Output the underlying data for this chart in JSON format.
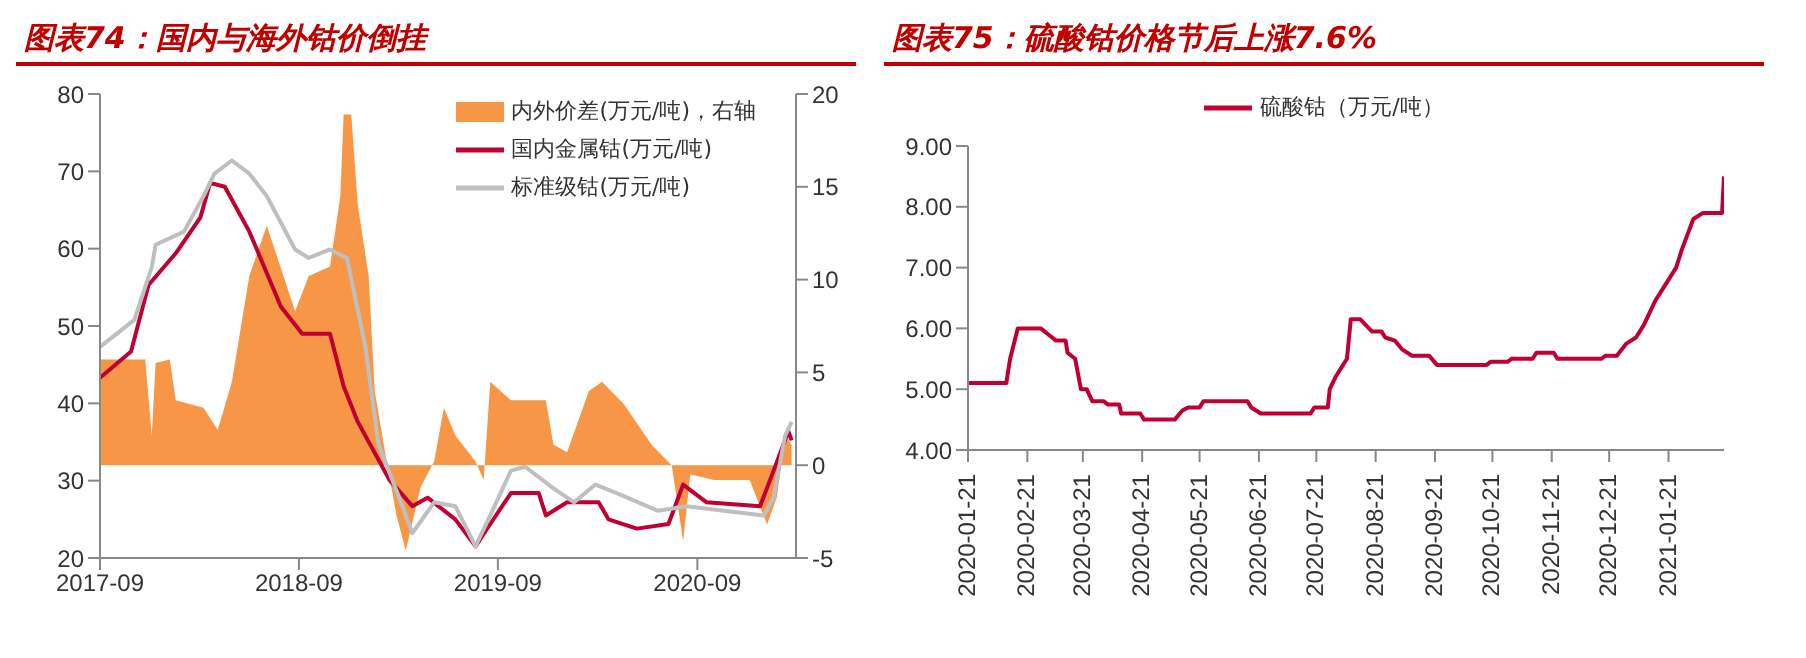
{
  "chart_data": [
    {
      "type": "line",
      "title": "图表74：国内与海外钴价倒挂",
      "xlim": [
        "2017-09-01",
        "2021-03-01"
      ],
      "xticks": [
        "2017-09",
        "2018-09",
        "2019-09",
        "2020-09"
      ],
      "ylim": [
        20,
        80
      ],
      "yticks": [
        20,
        30,
        40,
        50,
        60,
        70,
        80
      ],
      "y2lim": [
        -5,
        20
      ],
      "y2ticks": [
        -5,
        0,
        5,
        10,
        15,
        20
      ],
      "legend": "top right",
      "series": [
        {
          "name": "内外价差(万元/吨)，右轴",
          "type": "area",
          "axis": "y2",
          "color": "#f79646",
          "x": [
            "2017-09-01",
            "2017-11-23",
            "2017-12-05",
            "2017-12-12",
            "2018-01-07",
            "2018-01-18",
            "2018-03-10",
            "2018-04-05",
            "2018-05-01",
            "2018-06-02",
            "2018-07-04",
            "2018-08-25",
            "2018-09-19",
            "2018-10-28",
            "2018-11-16",
            "2018-11-22",
            "2018-12-06",
            "2018-12-18",
            "2019-01-07",
            "2019-01-18",
            "2019-02-09",
            "2019-02-27",
            "2019-03-16",
            "2019-04-12",
            "2019-05-07",
            "2019-05-25",
            "2019-06-15",
            "2019-07-22",
            "2019-08-06",
            "2019-08-18",
            "2019-09-25",
            "2019-11-28",
            "2019-12-12",
            "2020-01-06",
            "2020-02-15",
            "2020-03-10",
            "2020-04-19",
            "2020-06-09",
            "2020-07-16",
            "2020-08-06",
            "2020-08-19",
            "2020-10-02",
            "2020-12-06",
            "2021-01-07",
            "2021-01-25",
            "2021-02-09",
            "2021-02-21"
          ],
          "values": [
            5.7,
            5.7,
            1.6,
            5.5,
            5.7,
            3.5,
            3.1,
            1.9,
            4.5,
            10.2,
            12.9,
            8.3,
            10.2,
            10.7,
            14.5,
            18.9,
            18.9,
            14,
            10.2,
            4,
            0.2,
            -2.7,
            -4.6,
            -1.2,
            0.2,
            3.1,
            1.6,
            0.2,
            -0.8,
            4.5,
            3.5,
            3.5,
            1.1,
            0.7,
            4,
            4.5,
            3.3,
            1.1,
            0,
            -4.1,
            -0.5,
            -0.8,
            -0.8,
            -3.2,
            -1.7,
            1.6,
            1.1
          ]
        },
        {
          "name": "国内金属钴(万元/吨)",
          "color": "#c00030",
          "x": [
            "2017-09-01",
            "2017-10-28",
            "2017-11-29",
            "2018-01-18",
            "2018-03-04",
            "2018-03-22",
            "2018-04-18",
            "2018-06-02",
            "2018-07-30",
            "2018-09-07",
            "2018-10-28",
            "2018-11-22",
            "2018-12-18",
            "2019-01-18",
            "2019-02-14",
            "2019-03-28",
            "2019-04-25",
            "2019-06-15",
            "2019-07-22",
            "2019-08-18",
            "2019-09-25",
            "2019-11-15",
            "2019-11-28",
            "2020-01-06",
            "2020-03-04",
            "2020-03-22",
            "2020-05-13",
            "2020-07-10",
            "2020-08-06",
            "2020-09-18",
            "2020-12-25",
            "2021-01-19",
            "2021-02-15",
            "2021-02-21"
          ],
          "values": [
            43.3,
            46.7,
            55.3,
            59.4,
            64,
            68.5,
            68,
            62.2,
            52.5,
            49,
            49,
            42.2,
            37.6,
            33.6,
            30.1,
            26.7,
            27.8,
            25,
            21.5,
            24.4,
            28.4,
            28.4,
            25.5,
            27.2,
            27.2,
            25,
            23.8,
            24.4,
            29.5,
            27.2,
            26.7,
            31.3,
            36.4,
            35.2
          ]
        },
        {
          "name": "标准级钴(万元/吨)",
          "color": "#bfbfbf",
          "x": [
            "2017-09-01",
            "2017-11-03",
            "2017-12-05",
            "2017-12-12",
            "2018-02-02",
            "2018-03-10",
            "2018-03-30",
            "2018-05-01",
            "2018-06-02",
            "2018-07-04",
            "2018-08-25",
            "2018-09-19",
            "2018-10-28",
            "2018-11-28",
            "2019-01-01",
            "2019-01-25",
            "2019-03-04",
            "2019-03-28",
            "2019-05-07",
            "2019-06-15",
            "2019-07-22",
            "2019-08-18",
            "2019-09-25",
            "2019-10-21",
            "2019-12-12",
            "2020-01-19",
            "2020-02-27",
            "2020-04-06",
            "2020-06-21",
            "2020-08-12",
            "2021-01-01",
            "2021-01-19",
            "2021-02-09",
            "2021-02-21"
          ],
          "values": [
            47.3,
            50.8,
            57.6,
            60.5,
            62.2,
            66.8,
            69.7,
            71.4,
            69.7,
            66.8,
            59.9,
            58.8,
            59.9,
            58.8,
            47.3,
            34.7,
            27.8,
            23.2,
            27.2,
            26.7,
            21.5,
            25.5,
            31.3,
            31.8,
            29,
            27.2,
            29.5,
            28.4,
            26.1,
            26.7,
            25.5,
            27.8,
            35.8,
            37.6
          ]
        }
      ]
    },
    {
      "type": "line",
      "title": "图表75：硫酸钴价格节后上涨7.6%",
      "xlim": [
        "2020-01-21",
        "2021-02-19"
      ],
      "xticks": [
        "2020-01-21",
        "2020-02-21",
        "2020-03-21",
        "2020-04-21",
        "2020-05-21",
        "2020-06-21",
        "2020-07-21",
        "2020-08-21",
        "2020-09-21",
        "2020-10-21",
        "2020-11-21",
        "2020-12-21",
        "2021-01-21"
      ],
      "ylim": [
        4,
        9
      ],
      "yticks": [
        {
          "value": 4,
          "label": "4.00"
        },
        {
          "value": 5,
          "label": "5.00"
        },
        {
          "value": 6,
          "label": "6.00"
        },
        {
          "value": 7,
          "label": "7.00"
        },
        {
          "value": 8,
          "label": "8.00"
        },
        {
          "value": 9,
          "label": "9.00"
        }
      ],
      "legend": "top",
      "series": [
        {
          "name": "硫酸钴（万元/吨）",
          "color": "#c00030",
          "x": [
            "2020-01-21",
            "2020-02-10",
            "2020-02-12",
            "2020-02-16",
            "2020-02-28",
            "2020-03-03",
            "2020-03-07",
            "2020-03-12",
            "2020-03-13",
            "2020-03-17",
            "2020-03-20",
            "2020-03-23",
            "2020-03-26",
            "2020-04-01",
            "2020-04-03",
            "2020-04-09",
            "2020-04-10",
            "2020-04-20",
            "2020-04-22",
            "2020-05-08",
            "2020-05-12",
            "2020-05-15",
            "2020-05-21",
            "2020-05-23",
            "2020-06-15",
            "2020-06-17",
            "2020-06-22",
            "2020-07-18",
            "2020-07-20",
            "2020-07-27",
            "2020-07-28",
            "2020-07-31",
            "2020-08-06",
            "2020-08-08",
            "2020-08-13",
            "2020-08-19",
            "2020-08-24",
            "2020-08-26",
            "2020-08-31",
            "2020-09-04",
            "2020-09-09",
            "2020-09-18",
            "2020-09-22",
            "2020-10-18",
            "2020-10-20",
            "2020-10-29",
            "2020-10-31",
            "2020-11-11",
            "2020-11-13",
            "2020-11-22",
            "2020-11-24",
            "2020-12-17",
            "2020-12-19",
            "2020-12-25",
            "2020-12-30",
            "2021-01-04",
            "2021-01-08",
            "2021-01-14",
            "2021-01-19",
            "2021-01-25",
            "2021-01-28",
            "2021-02-03",
            "2021-02-08",
            "2021-02-18",
            "2021-02-19"
          ],
          "values": [
            5.1,
            5.1,
            5.5,
            6.0,
            6.0,
            5.9,
            5.8,
            5.8,
            5.6,
            5.5,
            5.0,
            5.0,
            4.8,
            4.8,
            4.75,
            4.75,
            4.6,
            4.6,
            4.5,
            4.5,
            4.65,
            4.7,
            4.7,
            4.8,
            4.8,
            4.7,
            4.6,
            4.6,
            4.7,
            4.7,
            5.0,
            5.2,
            5.5,
            6.15,
            6.15,
            5.95,
            5.95,
            5.85,
            5.8,
            5.65,
            5.55,
            5.55,
            5.4,
            5.4,
            5.45,
            5.45,
            5.5,
            5.5,
            5.6,
            5.6,
            5.5,
            5.5,
            5.55,
            5.55,
            5.75,
            5.85,
            6.05,
            6.45,
            6.7,
            7.0,
            7.3,
            7.8,
            7.9,
            7.9,
            8.5
          ]
        }
      ]
    }
  ]
}
